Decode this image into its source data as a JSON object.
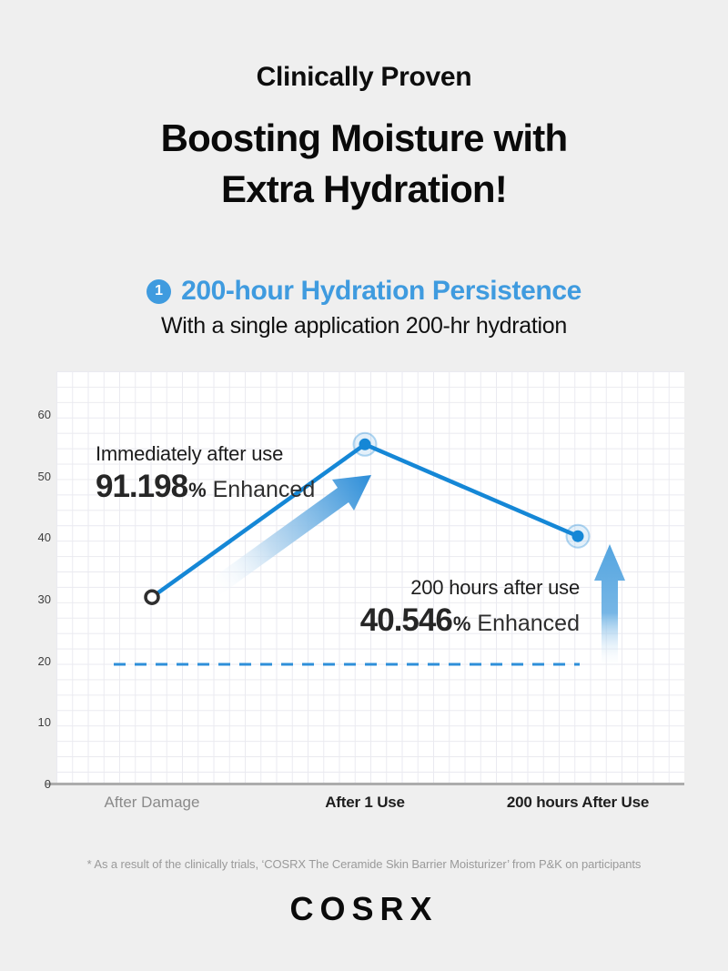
{
  "page": {
    "eyebrow": "Clinically Proven",
    "title_line1": "Boosting Moisture with",
    "title_line2": "Extra Hydration!",
    "section": {
      "badge": "1",
      "heading": "200-hour Hydration Persistence",
      "subheading": "With a single application 200-hr hydration"
    },
    "footnote": "* As a result of the clinically trials, ‘COSRX The Ceramide Skin Barrier Moisturizer’ from P&K on participants",
    "brand": "COSRX"
  },
  "annotations": {
    "peak": {
      "line1": "Immediately after use",
      "value": "91.198",
      "unit": "%",
      "suffix": "Enhanced"
    },
    "end": {
      "line1": "200 hours after use",
      "value": "40.546",
      "unit": "%",
      "suffix": "Enhanced"
    }
  },
  "colors": {
    "background": "#EFEFEF",
    "accent_blue": "#3F9BDF",
    "line_blue": "#1587D6",
    "dashed_blue": "#2E8FD9",
    "muted_label": "#8A8A8A",
    "footnote_gray": "#9A9A9A"
  },
  "chart_data": {
    "type": "line",
    "title": "200-hour Hydration Persistence",
    "categories": [
      "After Damage",
      "After 1 Use",
      "200 hours After Use"
    ],
    "values": [
      30.4,
      55.2,
      40.3
    ],
    "baseline_dashed": 19.5,
    "yticks": [
      60,
      50,
      40,
      30,
      20,
      10,
      0
    ],
    "ylim": [
      0,
      67
    ],
    "grid": true,
    "legend": false,
    "annotations": [
      "Immediately after use 91.198% Enhanced",
      "200 hours after use 40.546% Enhanced"
    ]
  }
}
